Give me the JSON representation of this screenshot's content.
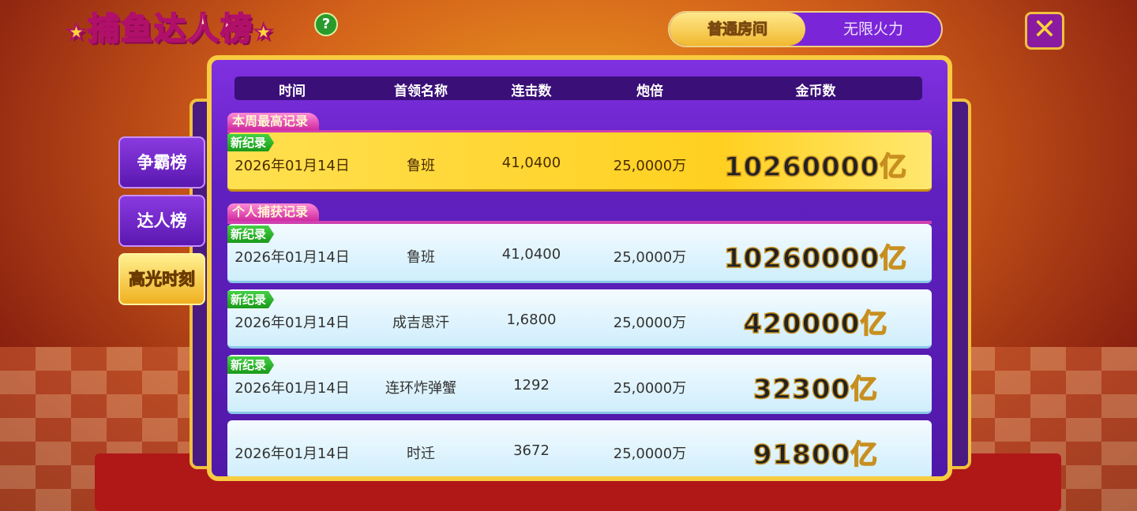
{
  "title": "捕鱼达人榜",
  "title_stars": "★",
  "help_icon": "?",
  "room_tabs": [
    {
      "label": "普通房间",
      "active": true
    },
    {
      "label": "无限火力",
      "active": false
    }
  ],
  "close_icon": "✕",
  "side_tabs": [
    {
      "label": "争霸榜",
      "active": false
    },
    {
      "label": "达人榜",
      "active": false
    },
    {
      "label": "高光时刻",
      "active": true
    }
  ],
  "columns": [
    "时间",
    "首领名称",
    "连击数",
    "炮倍",
    "金币数"
  ],
  "weekly": {
    "label": "本周最高记录",
    "row": {
      "badge": "新纪录",
      "time": "2026年01月14日",
      "boss": "鲁班",
      "combo": "41,0400",
      "multiplier": "25,0000万",
      "coins": "10260000亿"
    }
  },
  "personal": {
    "label": "个人捕获记录",
    "rows": [
      {
        "badge": "新纪录",
        "time": "2026年01月14日",
        "boss": "鲁班",
        "combo": "41,0400",
        "multiplier": "25,0000万",
        "coins": "10260000亿"
      },
      {
        "badge": "新纪录",
        "time": "2026年01月14日",
        "boss": "成吉思汗",
        "combo": "1,6800",
        "multiplier": "25,0000万",
        "coins": "420000亿"
      },
      {
        "badge": "新纪录",
        "time": "2026年01月14日",
        "boss": "连环炸弹蟹",
        "combo": "1292",
        "multiplier": "25,0000万",
        "coins": "32300亿"
      },
      {
        "badge": "",
        "time": "2026年01月14日",
        "boss": "时迁",
        "combo": "3672",
        "multiplier": "25,0000万",
        "coins": "91800亿"
      }
    ]
  },
  "colors": {
    "panel": "#6020c0",
    "gold": "#ffd020",
    "badge": "#1a9a1a"
  }
}
